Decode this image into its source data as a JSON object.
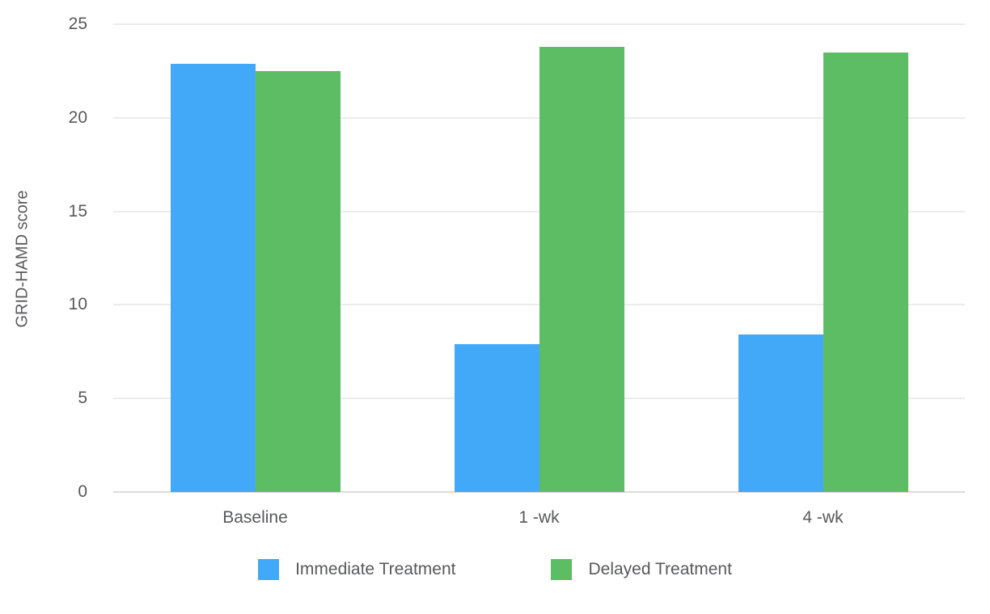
{
  "chart_data": {
    "type": "bar",
    "title": "",
    "categories": [
      "Baseline",
      "1 -wk",
      "4 -wk"
    ],
    "series": [
      {
        "name": "Immediate Treatment",
        "color": "#41a9f8",
        "values": [
          22.9,
          7.9,
          8.4
        ]
      },
      {
        "name": "Delayed Treatment",
        "color": "#5cbd64",
        "values": [
          22.5,
          23.8,
          23.5
        ]
      }
    ],
    "xlabel": "",
    "ylabel": "GRID-HAMD score",
    "yticks": [
      0,
      5,
      10,
      15,
      20,
      25
    ],
    "ylim": [
      0,
      25
    ],
    "grid": true,
    "legend_position": "bottom",
    "background_color": "#ffffff",
    "gridline_color": "#ececec",
    "axis_line_color": "#dcdcdc",
    "label_color": "#58595b"
  }
}
